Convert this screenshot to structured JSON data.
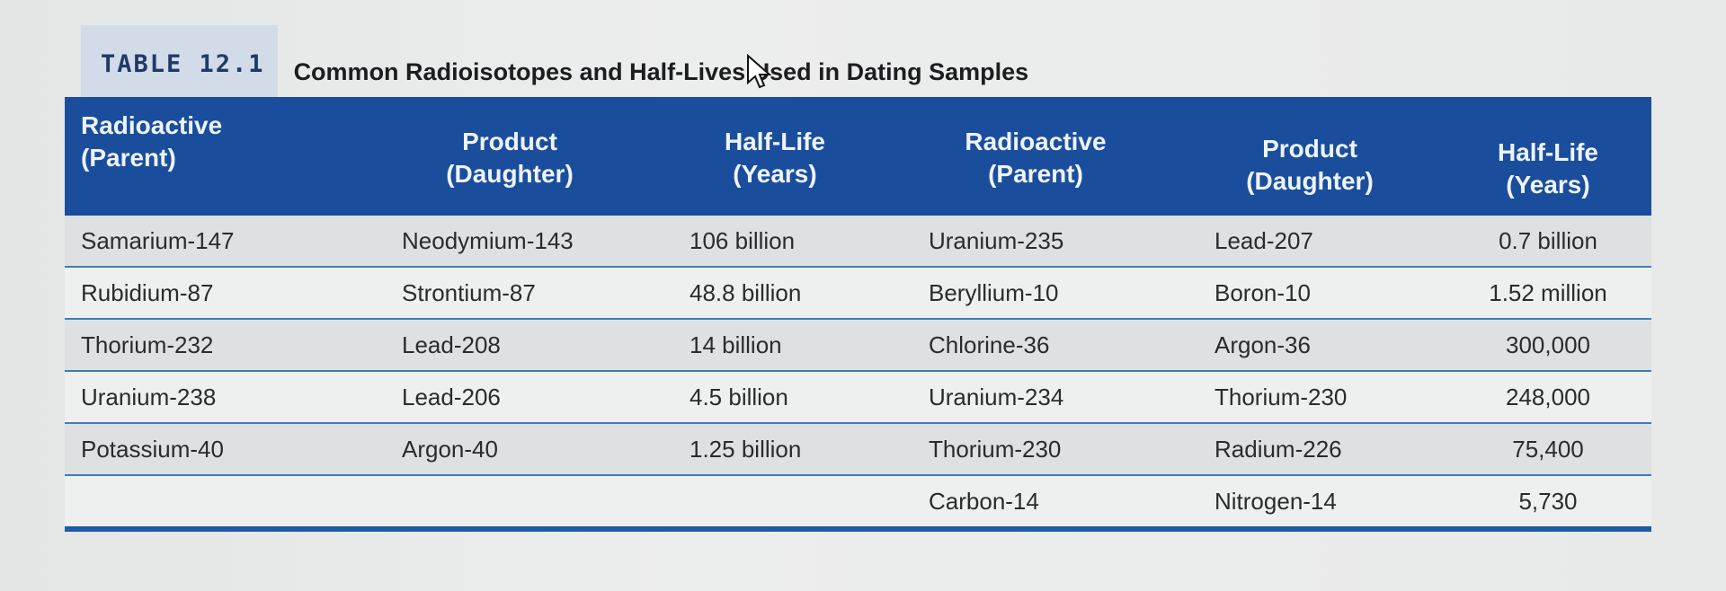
{
  "caption": {
    "label": "TABLE 12.1",
    "title": "Common Radioisotopes and Half-Lives Used in Dating Samples"
  },
  "headers": [
    {
      "line1": "Radioactive",
      "line2": "(Parent)"
    },
    {
      "line1": "Product",
      "line2": "(Daughter)"
    },
    {
      "line1": "Half-Life",
      "line2": "(Years)"
    },
    {
      "line1": "Radioactive",
      "line2": "(Parent)"
    },
    {
      "line1": "Product",
      "line2": "(Daughter)"
    },
    {
      "line1": "Half-Life",
      "line2": "(Years)"
    }
  ],
  "rows": [
    [
      "Samarium-147",
      "Neodymium-143",
      "106 billion",
      "Uranium-235",
      "Lead-207",
      "0.7 billion"
    ],
    [
      "Rubidium-87",
      "Strontium-87",
      "48.8 billion",
      "Beryllium-10",
      "Boron-10",
      "1.52 million"
    ],
    [
      "Thorium-232",
      "Lead-208",
      "14 billion",
      "Chlorine-36",
      "Argon-36",
      "300,000"
    ],
    [
      "Uranium-238",
      "Lead-206",
      "4.5 billion",
      "Uranium-234",
      "Thorium-230",
      "248,000"
    ],
    [
      "Potassium-40",
      "Argon-40",
      "1.25 billion",
      "Thorium-230",
      "Radium-226",
      "75,400"
    ],
    [
      "",
      "",
      "",
      "Carbon-14",
      "Nitrogen-14",
      "5,730"
    ]
  ],
  "colors": {
    "header_bg": "#1a4e9c",
    "label_bg": "#d2dce9",
    "rule": "#3d7cc4"
  }
}
